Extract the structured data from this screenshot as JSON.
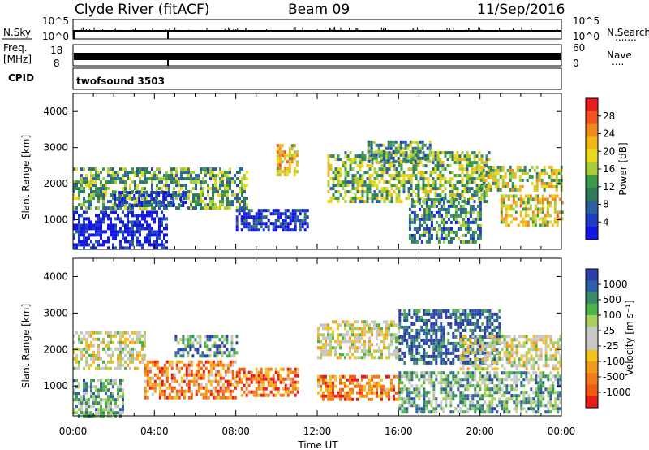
{
  "header": {
    "station": "Clyde River (fitACF)",
    "beam": "Beam 09",
    "date": "11/Sep/2016"
  },
  "strips": {
    "nsky": {
      "label": "N.Sky",
      "left_ticks": [
        "10^5",
        "10^0"
      ],
      "right_ticks": [
        "10^5",
        "10^0"
      ],
      "right_label": "N.Search",
      "right_dots": "......."
    },
    "freq": {
      "label_line1": "Freq.",
      "label_line2": "[MHz]",
      "left_ticks": [
        "18",
        "8"
      ],
      "right_ticks": [
        "60",
        "0"
      ],
      "right_label": "Nave",
      "right_dots": "...."
    },
    "cpid": {
      "label": "CPID",
      "value": "twofsound 3503"
    }
  },
  "x_axis": {
    "label": "Time UT",
    "ticks": [
      "00:00",
      "04:00",
      "08:00",
      "12:00",
      "16:00",
      "20:00",
      "00:00"
    ]
  },
  "chart_data": [
    {
      "type": "heatmap",
      "panel": "power",
      "ylabel": "Slant Range [km]",
      "yticks": [
        "1000",
        "2000",
        "3000",
        "4000"
      ],
      "ylim": [
        180,
        4500
      ],
      "x_range_hours": [
        0,
        24
      ],
      "colorbar_label": "Power [dB]",
      "colorbar_ticks": [
        "28",
        "24",
        "20",
        "16",
        "12",
        "8",
        "4"
      ],
      "colorbar_colors": [
        "#e81c1c",
        "#f25522",
        "#f08a1e",
        "#f1b81c",
        "#e8d81e",
        "#a8cc3c",
        "#3c9a4c",
        "#2f7b5a",
        "#2c5fa0",
        "#1f3cc8",
        "#1414e6"
      ],
      "regions": [
        {
          "t": [
            0.0,
            4.6
          ],
          "r": [
            200,
            1250
          ],
          "level": 0.95
        },
        {
          "t": [
            0.0,
            8.5
          ],
          "r": [
            1300,
            2450
          ],
          "level": 0.6
        },
        {
          "t": [
            2.0,
            5.5
          ],
          "r": [
            1400,
            1800
          ],
          "level": 0.85
        },
        {
          "t": [
            8.0,
            11.5
          ],
          "r": [
            700,
            1300
          ],
          "level": 0.9
        },
        {
          "t": [
            10.0,
            11.0
          ],
          "r": [
            2200,
            3100
          ],
          "level": 0.35
        },
        {
          "t": [
            12.5,
            20.5
          ],
          "r": [
            1500,
            2900
          ],
          "level": 0.55
        },
        {
          "t": [
            14.5,
            17.5
          ],
          "r": [
            2600,
            3200
          ],
          "level": 0.65
        },
        {
          "t": [
            16.5,
            20.0
          ],
          "r": [
            400,
            1600
          ],
          "level": 0.7
        },
        {
          "t": [
            20.0,
            24.0
          ],
          "r": [
            1800,
            2500
          ],
          "level": 0.45
        },
        {
          "t": [
            21.0,
            24.0
          ],
          "r": [
            800,
            1700
          ],
          "level": 0.4
        }
      ]
    },
    {
      "type": "heatmap",
      "panel": "velocity",
      "ylabel": "Slant Range [km]",
      "yticks": [
        "1000",
        "2000",
        "3000",
        "4000"
      ],
      "ylim": [
        180,
        4500
      ],
      "x_range_hours": [
        0,
        24
      ],
      "colorbar_label": "Velocity [m s⁻¹]",
      "colorbar_ticks": [
        "1000",
        "500",
        "100",
        "25",
        "-25",
        "-100",
        "-500",
        "-1000"
      ],
      "colorbar_colors": [
        "#2a3fa8",
        "#2f5fa8",
        "#3a8a6a",
        "#4fb24a",
        "#a9cf5e",
        "#c8c8c8",
        "#c8c8c8",
        "#f2c21e",
        "#f29a1e",
        "#f27a1e",
        "#f05a14",
        "#e81c1c"
      ],
      "regions": [
        {
          "t": [
            0.0,
            3.5
          ],
          "r": [
            1500,
            2500
          ],
          "level": 0.5
        },
        {
          "t": [
            0.0,
            2.5
          ],
          "r": [
            200,
            1200
          ],
          "level": 0.3
        },
        {
          "t": [
            3.5,
            8.0
          ],
          "r": [
            700,
            1700
          ],
          "level": 0.75
        },
        {
          "t": [
            5.0,
            8.0
          ],
          "r": [
            1800,
            2400
          ],
          "level": 0.25
        },
        {
          "t": [
            8.0,
            11.0
          ],
          "r": [
            700,
            1500
          ],
          "level": 0.8
        },
        {
          "t": [
            12.0,
            16.0
          ],
          "r": [
            1800,
            2800
          ],
          "level": 0.5
        },
        {
          "t": [
            12.0,
            16.0
          ],
          "r": [
            600,
            1300
          ],
          "level": 0.8
        },
        {
          "t": [
            16.0,
            21.0
          ],
          "r": [
            1600,
            3100
          ],
          "level": 0.1
        },
        {
          "t": [
            19.0,
            24.0
          ],
          "r": [
            1500,
            2400
          ],
          "level": 0.5
        },
        {
          "t": [
            16.0,
            24.0
          ],
          "r": [
            300,
            1400
          ],
          "level": 0.3
        }
      ]
    }
  ]
}
